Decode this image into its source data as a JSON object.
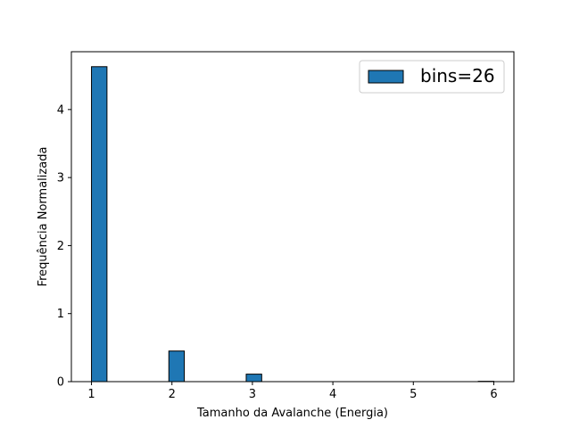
{
  "chart_data": {
    "type": "bar",
    "title": "",
    "xlabel": "Tamanho da Avalanche (Energia)",
    "ylabel": "Frequência Normalizada",
    "xlim": [
      0.75,
      6.25
    ],
    "ylim": [
      0,
      4.85
    ],
    "xticks": [
      "1",
      "2",
      "3",
      "4",
      "5",
      "6"
    ],
    "yticks": [
      "0",
      "1",
      "2",
      "3",
      "4"
    ],
    "grid": false,
    "legend_position": "top-right",
    "bar_color": "#1f77b4",
    "edge_color": "#000000",
    "series": [
      {
        "name": "bins=26",
        "bins": [
          {
            "x0": 1.0,
            "x1": 1.1923,
            "value": 4.63
          },
          {
            "x0": 1.9615,
            "x1": 2.1538,
            "value": 0.45
          },
          {
            "x0": 2.9231,
            "x1": 3.1154,
            "value": 0.11
          },
          {
            "x0": 5.8077,
            "x1": 6.0,
            "value": 0.005
          }
        ]
      }
    ]
  }
}
